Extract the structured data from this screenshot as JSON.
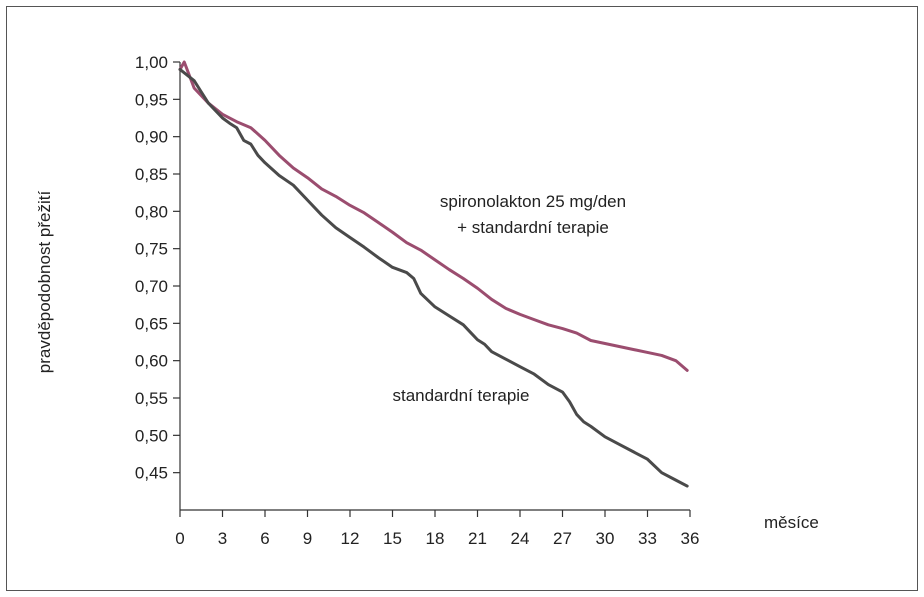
{
  "chart_data": {
    "type": "line",
    "title": "",
    "xlabel": "měsíce",
    "ylabel": "pravděpodobnost přežití",
    "xlim": [
      0,
      36
    ],
    "ylim": [
      0.4,
      1.0
    ],
    "x_ticks": [
      "0",
      "3",
      "6",
      "9",
      "12",
      "15",
      "18",
      "21",
      "24",
      "27",
      "30",
      "33",
      "36"
    ],
    "y_ticks": [
      "1,00",
      "0,95",
      "0,90",
      "0,85",
      "0,80",
      "0,75",
      "0,70",
      "0,65",
      "0,60",
      "0,55",
      "0,50",
      "0,45"
    ],
    "grid": false,
    "legend": "none",
    "series": [
      {
        "name": "spironolakton 25 mg/den + standardní terapie",
        "label_lines": [
          "spironolakton 25 mg/den",
          "+ standardní terapie"
        ],
        "color": "#9b4d6f",
        "x": [
          0,
          0.3,
          1,
          2,
          3,
          4,
          5,
          6,
          7,
          8,
          9,
          10,
          11,
          12,
          13,
          14,
          15,
          16,
          17,
          18,
          19,
          20,
          21,
          22,
          23,
          24,
          25,
          26,
          27,
          28,
          29,
          30,
          31,
          32,
          33,
          34,
          35,
          35.8
        ],
        "y": [
          0.99,
          1.0,
          0.965,
          0.945,
          0.93,
          0.92,
          0.912,
          0.895,
          0.875,
          0.858,
          0.845,
          0.83,
          0.82,
          0.808,
          0.798,
          0.785,
          0.772,
          0.758,
          0.748,
          0.735,
          0.722,
          0.71,
          0.697,
          0.682,
          0.67,
          0.662,
          0.655,
          0.648,
          0.643,
          0.637,
          0.627,
          0.623,
          0.619,
          0.615,
          0.611,
          0.607,
          0.6,
          0.587
        ]
      },
      {
        "name": "standardní terapie",
        "label_lines": [
          "standardní terapie"
        ],
        "color": "#4a4a4a",
        "x": [
          0,
          1,
          1.5,
          2,
          3,
          3.5,
          4,
          4.5,
          5,
          5.5,
          6,
          7,
          8,
          9,
          10,
          11,
          12,
          13,
          14,
          15,
          16,
          16.5,
          17,
          18,
          19,
          20,
          20.5,
          21,
          21.5,
          22,
          23,
          24,
          25,
          26,
          27,
          27.5,
          28,
          28.5,
          29,
          30,
          31,
          32,
          33,
          34,
          35,
          35.8
        ],
        "y": [
          0.99,
          0.975,
          0.96,
          0.945,
          0.925,
          0.918,
          0.912,
          0.895,
          0.89,
          0.875,
          0.865,
          0.848,
          0.835,
          0.815,
          0.795,
          0.778,
          0.765,
          0.752,
          0.738,
          0.725,
          0.718,
          0.71,
          0.69,
          0.672,
          0.66,
          0.648,
          0.638,
          0.628,
          0.622,
          0.612,
          0.602,
          0.592,
          0.582,
          0.568,
          0.558,
          0.545,
          0.528,
          0.518,
          0.512,
          0.498,
          0.488,
          0.478,
          0.468,
          0.45,
          0.44,
          0.432
        ]
      }
    ]
  }
}
